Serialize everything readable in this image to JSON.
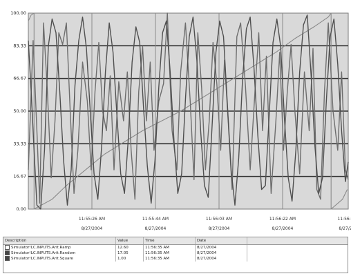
{
  "chart_data": {
    "type": "line",
    "title": "",
    "xlabel": "",
    "ylabel": "",
    "ylim": [
      0,
      100
    ],
    "y_ticks": [
      "0.00",
      "16.67",
      "33.33",
      "50.00",
      "66.67",
      "83.33",
      "100.00"
    ],
    "x_ticks": [
      {
        "time": "11:55:26 AM",
        "date": "8/27/2004"
      },
      {
        "time": "11:55:44 AM",
        "date": "8/27/2004"
      },
      {
        "time": "11:56:03 AM",
        "date": "8/27/2004"
      },
      {
        "time": "11:56:22 AM",
        "date": "8/27/2004"
      },
      {
        "time": "11:56:3",
        "date": "8/27/2"
      }
    ],
    "grid": true,
    "series": [
      {
        "name": "Ramp",
        "color": "#8a8a8a",
        "values": [
          [
            0,
            96
          ],
          [
            3,
            99
          ],
          [
            6,
            100
          ],
          [
            6.01,
            0
          ],
          [
            25,
            5
          ],
          [
            40,
            12
          ],
          [
            60,
            20
          ],
          [
            80,
            28
          ],
          [
            100,
            34
          ],
          [
            120,
            40
          ],
          [
            140,
            45
          ],
          [
            160,
            50
          ],
          [
            180,
            56
          ],
          [
            200,
            62
          ],
          [
            220,
            68
          ],
          [
            240,
            74
          ],
          [
            260,
            80
          ],
          [
            280,
            87
          ],
          [
            300,
            93
          ],
          [
            315,
            98
          ],
          [
            318,
            100
          ],
          [
            318.01,
            0
          ],
          [
            330,
            5
          ],
          [
            335,
            10
          ]
        ]
      },
      {
        "name": "Random",
        "color": "#6e6e6e",
        "values": [
          [
            0,
            20
          ],
          [
            5,
            86
          ],
          [
            9,
            40
          ],
          [
            12,
            3
          ],
          [
            16,
            95
          ],
          [
            20,
            60
          ],
          [
            24,
            16
          ],
          [
            28,
            45
          ],
          [
            32,
            90
          ],
          [
            36,
            84
          ],
          [
            40,
            95
          ],
          [
            44,
            50
          ],
          [
            48,
            8
          ],
          [
            52,
            30
          ],
          [
            57,
            75
          ],
          [
            62,
            55
          ],
          [
            66,
            20
          ],
          [
            70,
            60
          ],
          [
            74,
            85
          ],
          [
            78,
            50
          ],
          [
            82,
            40
          ],
          [
            86,
            68
          ],
          [
            90,
            20
          ],
          [
            95,
            65
          ],
          [
            100,
            45
          ],
          [
            104,
            70
          ],
          [
            108,
            30
          ],
          [
            112,
            5
          ],
          [
            116,
            60
          ],
          [
            120,
            83
          ],
          [
            124,
            45
          ],
          [
            128,
            75
          ],
          [
            132,
            30
          ],
          [
            137,
            55
          ],
          [
            142,
            64
          ],
          [
            146,
            100
          ],
          [
            151,
            40
          ],
          [
            156,
            20
          ],
          [
            160,
            70
          ],
          [
            165,
            95
          ],
          [
            170,
            55
          ],
          [
            174,
            15
          ],
          [
            178,
            90
          ],
          [
            182,
            62
          ],
          [
            186,
            20
          ],
          [
            190,
            45
          ],
          [
            194,
            85
          ],
          [
            198,
            64
          ],
          [
            202,
            30
          ],
          [
            206,
            76
          ],
          [
            210,
            44
          ],
          [
            214,
            10
          ],
          [
            219,
            88
          ],
          [
            223,
            95
          ],
          [
            228,
            63
          ],
          [
            233,
            20
          ],
          [
            238,
            60
          ],
          [
            242,
            90
          ],
          [
            246,
            40
          ],
          [
            250,
            78
          ],
          [
            255,
            8
          ],
          [
            260,
            45
          ],
          [
            264,
            80
          ],
          [
            268,
            30
          ],
          [
            272,
            60
          ],
          [
            276,
            84
          ],
          [
            280,
            50
          ],
          [
            285,
            18
          ],
          [
            290,
            70
          ],
          [
            295,
            40
          ],
          [
            299,
            82
          ],
          [
            303,
            10
          ],
          [
            307,
            5
          ],
          [
            311,
            60
          ],
          [
            315,
            95
          ],
          [
            320,
            50
          ],
          [
            325,
            30
          ],
          [
            329,
            70
          ],
          [
            333,
            20
          ],
          [
            336,
            15
          ]
        ]
      },
      {
        "name": "Square",
        "color": "#4f4f4f",
        "values": [
          [
            0,
            86
          ],
          [
            3,
            60
          ],
          [
            6,
            30
          ],
          [
            9,
            2
          ],
          [
            13,
            0
          ],
          [
            17,
            30
          ],
          [
            21,
            83
          ],
          [
            25,
            97
          ],
          [
            29,
            90
          ],
          [
            33,
            60
          ],
          [
            37,
            25
          ],
          [
            41,
            2
          ],
          [
            45,
            20
          ],
          [
            49,
            63
          ],
          [
            53,
            86
          ],
          [
            57,
            98
          ],
          [
            61,
            82
          ],
          [
            65,
            50
          ],
          [
            69,
            18
          ],
          [
            73,
            5
          ],
          [
            77,
            32
          ],
          [
            81,
            70
          ],
          [
            85,
            95
          ],
          [
            89,
            80
          ],
          [
            93,
            48
          ],
          [
            97,
            18
          ],
          [
            101,
            8
          ],
          [
            105,
            36
          ],
          [
            109,
            75
          ],
          [
            113,
            93
          ],
          [
            117,
            85
          ],
          [
            121,
            52
          ],
          [
            125,
            22
          ],
          [
            129,
            3
          ],
          [
            133,
            25
          ],
          [
            137,
            62
          ],
          [
            141,
            90
          ],
          [
            145,
            96
          ],
          [
            149,
            70
          ],
          [
            153,
            35
          ],
          [
            157,
            8
          ],
          [
            161,
            18
          ],
          [
            165,
            56
          ],
          [
            169,
            88
          ],
          [
            173,
            98
          ],
          [
            177,
            76
          ],
          [
            181,
            40
          ],
          [
            185,
            12
          ],
          [
            189,
            6
          ],
          [
            193,
            42
          ],
          [
            197,
            80
          ],
          [
            201,
            96
          ],
          [
            205,
            88
          ],
          [
            209,
            54
          ],
          [
            213,
            20
          ],
          [
            217,
            2
          ],
          [
            221,
            26
          ],
          [
            225,
            66
          ],
          [
            229,
            92
          ],
          [
            233,
            98
          ],
          [
            237,
            72
          ],
          [
            241,
            38
          ],
          [
            245,
            10
          ],
          [
            249,
            12
          ],
          [
            253,
            48
          ],
          [
            257,
            85
          ],
          [
            261,
            97
          ],
          [
            265,
            83
          ],
          [
            269,
            46
          ],
          [
            273,
            16
          ],
          [
            277,
            4
          ],
          [
            281,
            30
          ],
          [
            285,
            70
          ],
          [
            289,
            94
          ],
          [
            293,
            99
          ],
          [
            297,
            68
          ],
          [
            301,
            32
          ],
          [
            305,
            8
          ],
          [
            309,
            16
          ],
          [
            313,
            55
          ],
          [
            317,
            88
          ],
          [
            321,
            97
          ],
          [
            325,
            74
          ],
          [
            329,
            40
          ],
          [
            333,
            14
          ],
          [
            336,
            24
          ]
        ]
      }
    ]
  },
  "legend": {
    "headers": {
      "description": "Description",
      "value": "Value",
      "time": "Time",
      "date": "Date"
    },
    "rows": [
      {
        "description": "Simulator!LC.INPUTS.Arit.Ramp",
        "value": "12.60",
        "time": "11:56:35 AM",
        "date": "8/27/2004",
        "checked": false
      },
      {
        "description": "Simulator!LC.INPUTS.Arit.Random",
        "value": "17.05",
        "time": "11:56:35 AM",
        "date": "8/27/2004",
        "checked": true
      },
      {
        "description": "Simulator!LC.INPUTS.Arit.Square",
        "value": "1.00",
        "time": "11:56:35 AM",
        "date": "8/27/2004",
        "checked": true
      }
    ]
  }
}
